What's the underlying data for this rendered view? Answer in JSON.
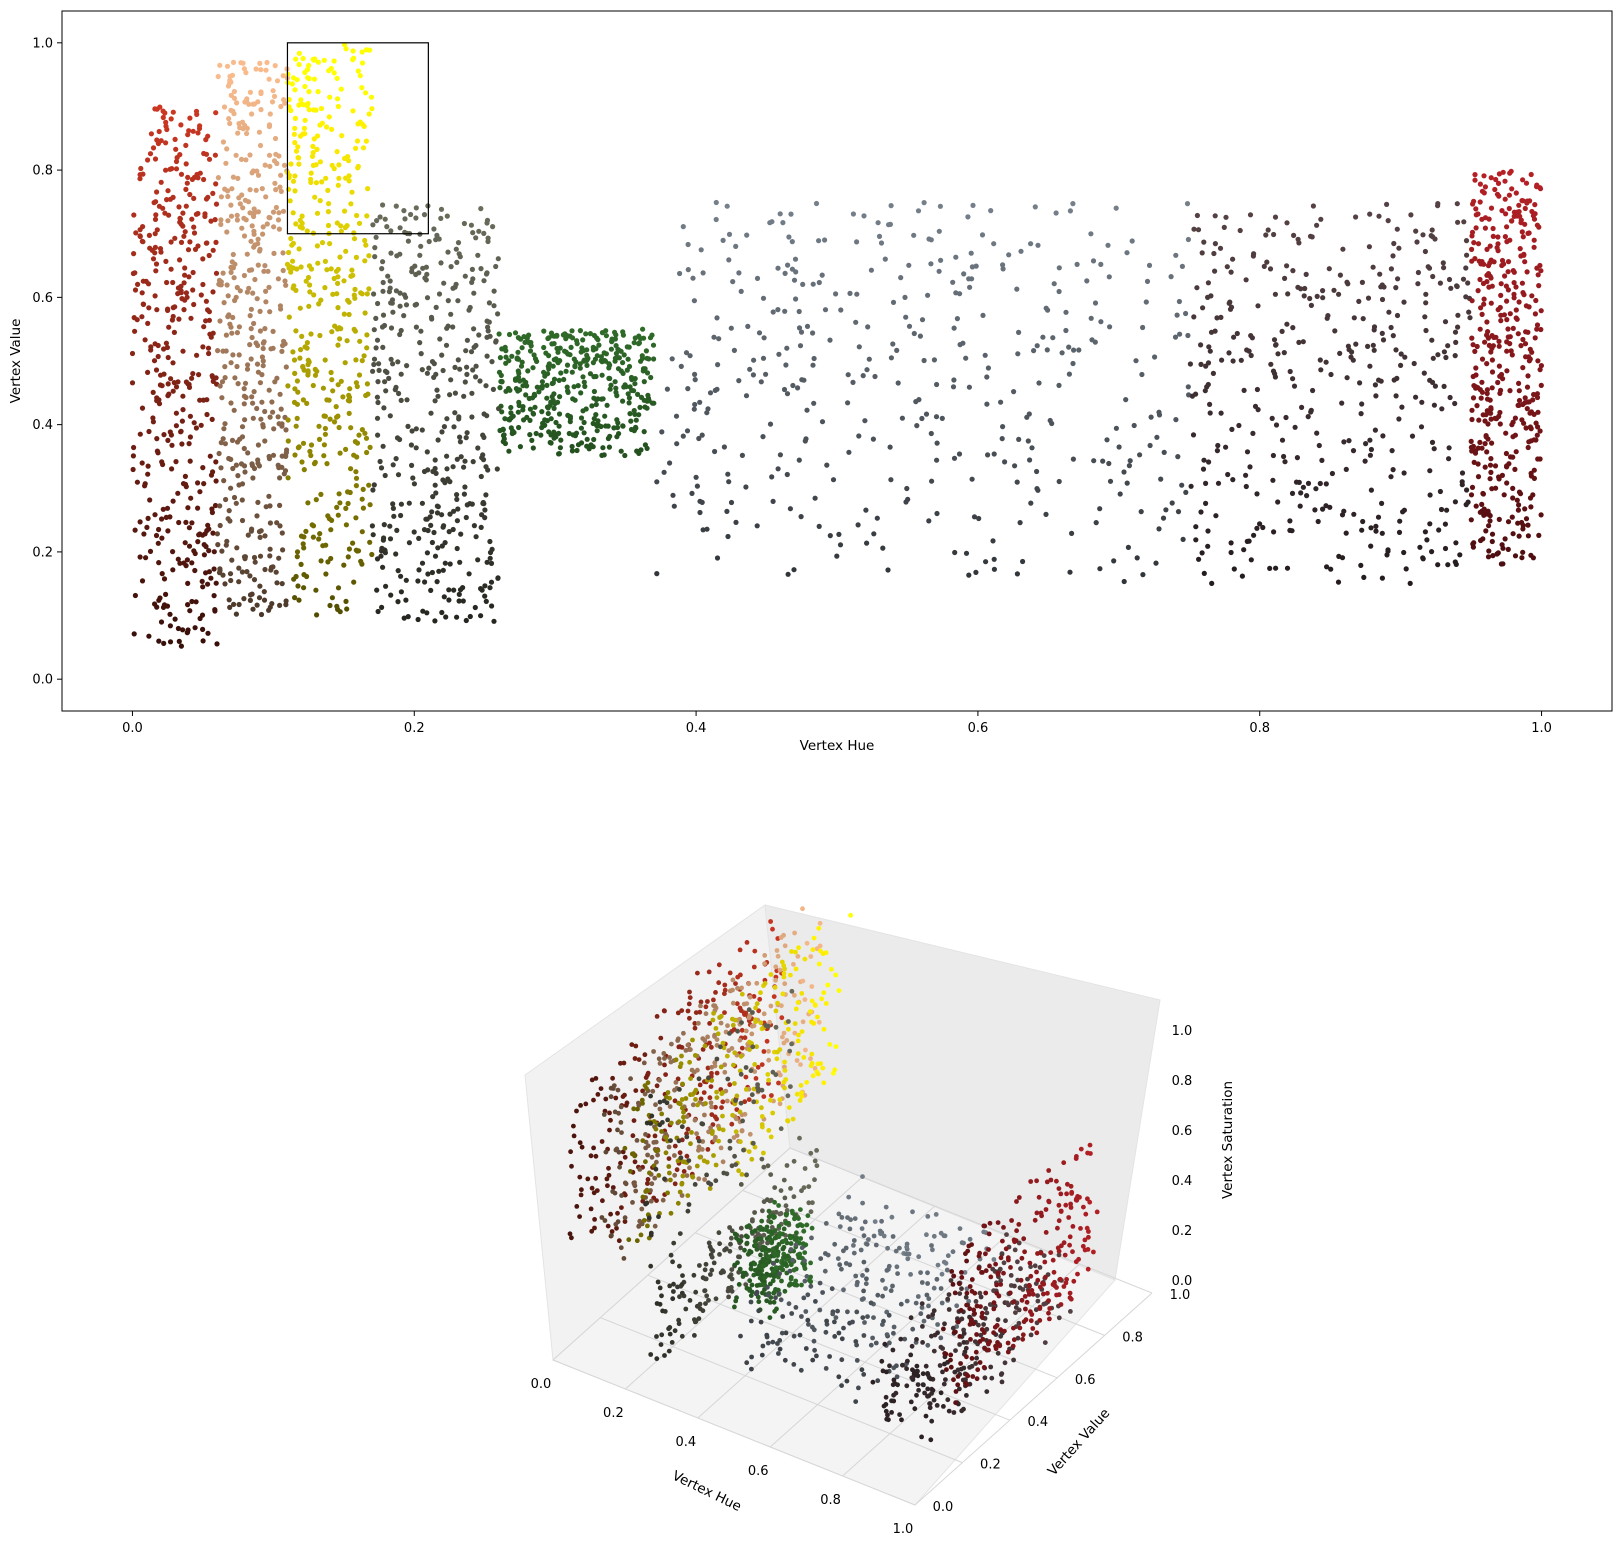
{
  "chart_data": [
    {
      "type": "scatter",
      "xlabel": "Vertex Hue",
      "ylabel": "Vertex Value",
      "xlim": [
        -0.05,
        1.05
      ],
      "ylim": [
        -0.05,
        1.05
      ],
      "xticks": [
        "0.0",
        "0.2",
        "0.4",
        "0.6",
        "0.8",
        "1.0"
      ],
      "yticks": [
        "0.0",
        "0.2",
        "0.4",
        "0.6",
        "0.8",
        "1.0"
      ],
      "grid": false,
      "highlight_box": {
        "x": [
          0.11,
          0.21
        ],
        "y": [
          0.7,
          1.0
        ]
      },
      "point_color": "per-point HSV color of each vertex",
      "clusters": [
        {
          "hue": [
            0.0,
            0.06
          ],
          "value": [
            0.05,
            0.9
          ],
          "color": "#b8321f"
        },
        {
          "hue": [
            0.06,
            0.11
          ],
          "value": [
            0.1,
            0.97
          ],
          "color": "#d9a37a"
        },
        {
          "hue": [
            0.11,
            0.17
          ],
          "value": [
            0.1,
            1.0
          ],
          "color": "#f0e000"
        },
        {
          "hue": [
            0.17,
            0.26
          ],
          "value": [
            0.09,
            0.75
          ],
          "color": "#707060"
        },
        {
          "hue": [
            0.26,
            0.37
          ],
          "value": [
            0.35,
            0.55
          ],
          "color": "#3d8a35"
        },
        {
          "hue": [
            0.37,
            0.75
          ],
          "value": [
            0.15,
            0.75
          ],
          "color": "#7a8590"
        },
        {
          "hue": [
            0.75,
            0.95
          ],
          "value": [
            0.15,
            0.75
          ],
          "color": "#5a4548"
        },
        {
          "hue": [
            0.95,
            1.0
          ],
          "value": [
            0.18,
            0.8
          ],
          "color": "#b52025"
        }
      ]
    },
    {
      "type": "scatter",
      "projection": "3d",
      "xlabel": "Vertex Hue",
      "ylabel": "Vertex Value",
      "zlabel": "Vertex Saturation",
      "xticks": [
        "0.0",
        "0.2",
        "0.4",
        "0.6",
        "0.8",
        "1.0"
      ],
      "yticks": [
        "0.0",
        "0.2",
        "0.4",
        "0.6",
        "0.8",
        "1.0"
      ],
      "zticks": [
        "0.0",
        "0.2",
        "0.4",
        "0.6",
        "0.8",
        "1.0"
      ],
      "xlim": [
        0,
        1
      ],
      "ylim": [
        0,
        1
      ],
      "zlim": [
        0,
        1
      ],
      "grid": true,
      "point_color": "per-point HSV color of each vertex"
    }
  ]
}
